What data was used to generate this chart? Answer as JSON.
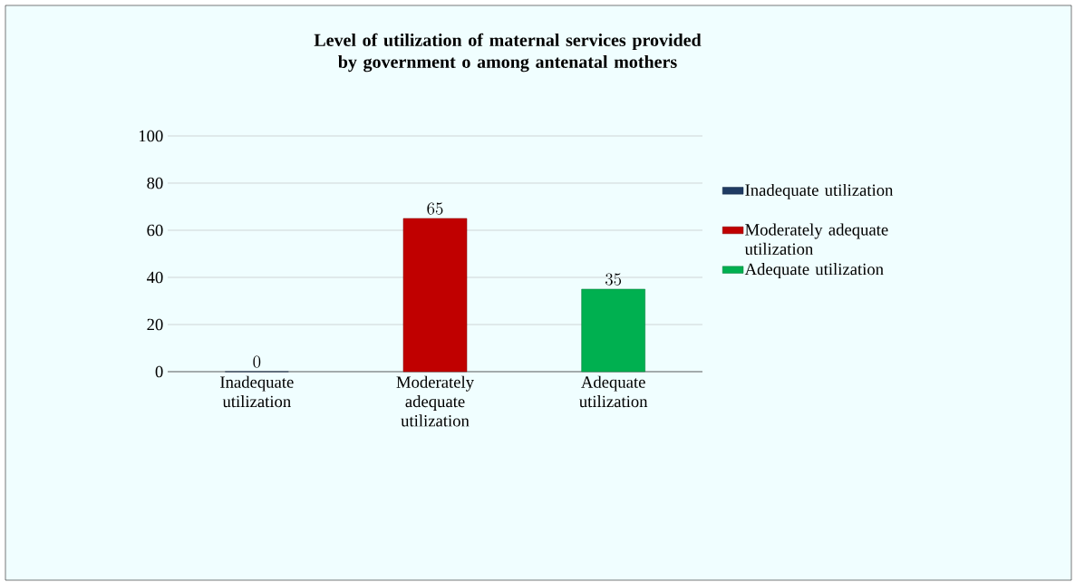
{
  "chart_data": {
    "type": "bar",
    "title": "Level of utilization of maternal services provided by government o among antenatal mothers",
    "categories": [
      "Inadequate utilization",
      "Moderately adequate utilization",
      "Adequate utilization"
    ],
    "series": [
      {
        "name": "Inadequate utilization",
        "color": "#1f3b63",
        "values": [
          0,
          null,
          null
        ]
      },
      {
        "name": "Moderately adequate utilization",
        "color": "#c00000",
        "values": [
          null,
          65,
          null
        ]
      },
      {
        "name": "Adequate utilization",
        "color": "#00b050",
        "values": [
          null,
          null,
          35
        ]
      }
    ],
    "ylim": [
      0,
      100
    ],
    "yticks": [
      0,
      20,
      40,
      60,
      80,
      100
    ],
    "grid": "y",
    "legend": "right",
    "data_labels": true
  }
}
